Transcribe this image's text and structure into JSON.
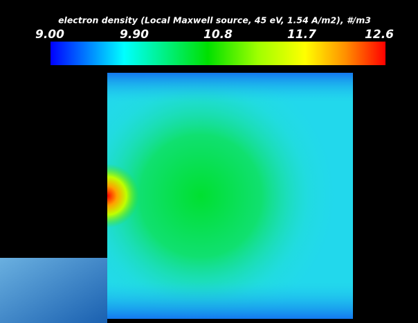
{
  "chart_data": {
    "type": "colormap",
    "title": "electron density (Local Maxwell source, 45 eV, 1.54 A/m2), #/m3",
    "clim": [
      9.0,
      12.6
    ],
    "cticks": [
      {
        "value": 9.0,
        "label": "9.00"
      },
      {
        "value": 9.9,
        "label": "9.90"
      },
      10.8,
      11.7,
      12.6
    ]
  }
}
